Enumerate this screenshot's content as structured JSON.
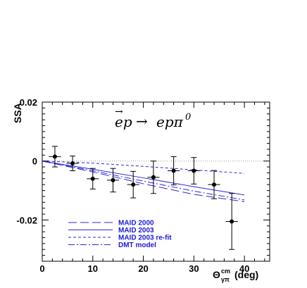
{
  "chart_data": {
    "type": "scatter",
    "title": "ep → epπ⁰",
    "title_parts": {
      "lhs_vec": "→",
      "lhs": "ep",
      "arrow": "→",
      "rhs": "epπ",
      "rhs_sup": "0"
    },
    "ylabel": "SSA",
    "xlabel": {
      "symbol": "Θ",
      "sup": "cm",
      "sub": "γπ",
      "unit": "(deg)"
    },
    "xlim": [
      0,
      45
    ],
    "ylim": [
      -0.034,
      0.02
    ],
    "x_ticks": [
      0,
      10,
      20,
      30,
      40
    ],
    "x_tick_labels": [
      "0",
      "10",
      "20",
      "30",
      "40"
    ],
    "y_ticks": [
      0.02,
      0,
      -0.02
    ],
    "y_tick_labels": [
      "0.02",
      "0",
      "-0.02"
    ],
    "grid": false,
    "reference_line": {
      "y": 0,
      "style": "dotted"
    },
    "legend_position": "bottom-left",
    "data_points": {
      "x": [
        2.5,
        6,
        10,
        14,
        18,
        22,
        26,
        30,
        34,
        37.5
      ],
      "y": [
        0.0015,
        -0.0008,
        -0.006,
        -0.0065,
        -0.008,
        -0.0055,
        -0.0033,
        -0.0033,
        -0.008,
        -0.0205
      ],
      "yerr": [
        0.0035,
        0.0025,
        0.0035,
        0.004,
        0.0045,
        0.0055,
        0.0048,
        0.0045,
        0.0048,
        0.0095
      ],
      "xerr": [
        1.2,
        1.2,
        1.2,
        1.2,
        1.2,
        1.2,
        1.2,
        1.2,
        1.2,
        1.2
      ]
    },
    "series": [
      {
        "name": "MAID 2000",
        "style": "long-dash",
        "color": "#2a2ad8",
        "x": [
          0,
          10,
          20,
          30,
          40
        ],
        "y": [
          0,
          -0.0037,
          -0.0077,
          -0.0113,
          -0.0138
        ]
      },
      {
        "name": "MAID 2003",
        "style": "solid",
        "color": "#2a2ad8",
        "x": [
          0,
          10,
          20,
          30,
          40
        ],
        "y": [
          0,
          -0.0028,
          -0.0057,
          -0.0087,
          -0.0115
        ]
      },
      {
        "name": "MAID 2003 re-fit",
        "style": "short-dash",
        "color": "#2a2ad8",
        "x": [
          0,
          10,
          20,
          30,
          40
        ],
        "y": [
          0,
          -0.0007,
          -0.0018,
          -0.003,
          -0.0042
        ]
      },
      {
        "name": "DMT model",
        "style": "dash-dot",
        "color": "#2a2ad8",
        "x": [
          0,
          10,
          20,
          30,
          40
        ],
        "y": [
          0,
          -0.0033,
          -0.0068,
          -0.0102,
          -0.0132
        ]
      }
    ]
  }
}
